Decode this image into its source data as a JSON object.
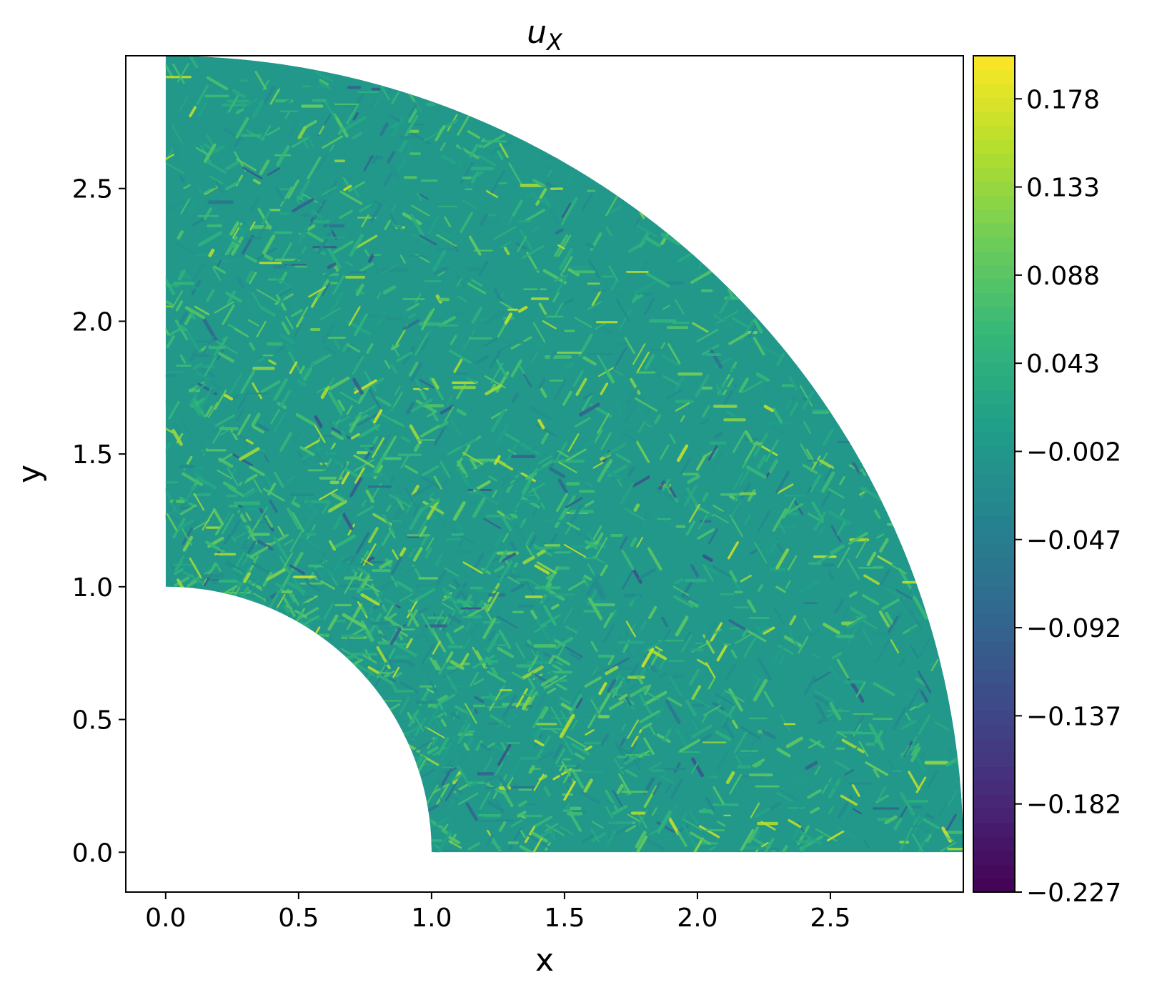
{
  "chart_data": {
    "type": "heatmap",
    "title": "u_X",
    "title_main": "u",
    "title_sub": "X",
    "xlabel": "x",
    "ylabel": "y",
    "xlim": [
      -0.15,
      3.0
    ],
    "ylim": [
      -0.15,
      3.0
    ],
    "x_ticks": [
      0.0,
      0.5,
      1.0,
      1.5,
      2.0,
      2.5
    ],
    "x_tick_labels": [
      "0.0",
      "0.5",
      "1.0",
      "1.5",
      "2.0",
      "2.5"
    ],
    "y_ticks": [
      0.0,
      0.5,
      1.0,
      1.5,
      2.0,
      2.5
    ],
    "y_tick_labels": [
      "0.0",
      "0.5",
      "1.0",
      "1.5",
      "2.0",
      "2.5"
    ],
    "domain": {
      "shape": "quarter annulus",
      "inner_radius": 1.0,
      "outer_radius": 3.0
    },
    "colorbar": {
      "colormap": "viridis",
      "vmin": -0.227,
      "vmax": 0.2,
      "ticks": [
        0.178,
        0.133,
        0.088,
        0.043,
        -0.002,
        -0.047,
        -0.092,
        -0.137,
        -0.182,
        -0.227
      ],
      "tick_labels": [
        "0.178",
        "0.133",
        "0.088",
        "0.043",
        "−0.002",
        "−0.047",
        "−0.092",
        "−0.137",
        "−0.182",
        "−0.227"
      ]
    },
    "field": {
      "typical_value": 0.0,
      "range": [
        -0.227,
        0.2
      ]
    },
    "grid": false,
    "legend": "none"
  }
}
